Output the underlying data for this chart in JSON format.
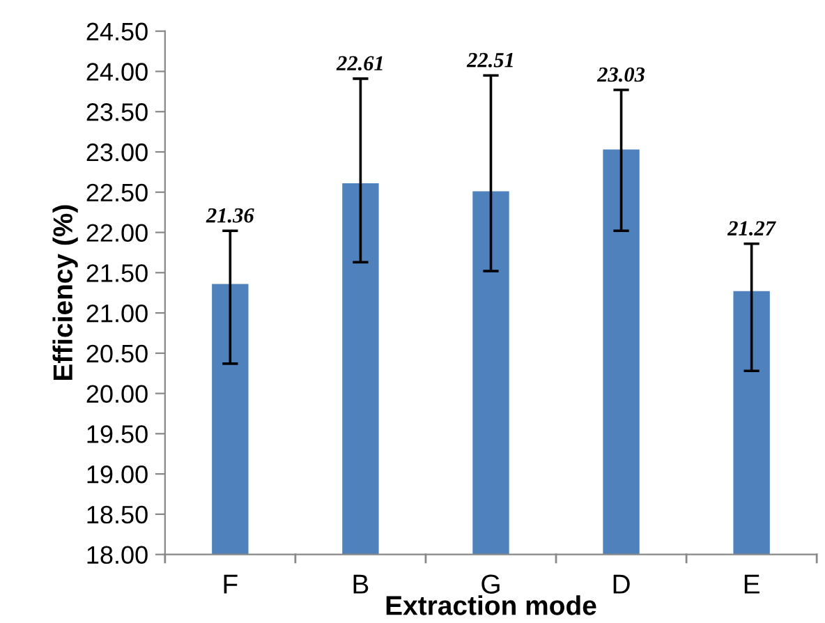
{
  "chart_data": {
    "type": "bar",
    "xlabel": "Extraction mode",
    "ylabel": "Efficiency (%)",
    "categories": [
      "F",
      "B",
      "G",
      "D",
      "E"
    ],
    "values": [
      21.36,
      22.61,
      22.51,
      23.03,
      21.27
    ],
    "errors": [
      [
        20.37,
        22.02
      ],
      [
        21.63,
        23.91
      ],
      [
        21.52,
        23.95
      ],
      [
        22.02,
        23.77
      ],
      [
        20.28,
        21.86
      ]
    ],
    "color": "#4f81bd",
    "grid": false,
    "legend": false,
    "annotations": [
      {
        "text": "21.36",
        "x": "F",
        "y": 22.02
      },
      {
        "text": "22.61",
        "x": "B",
        "y": 23.91
      },
      {
        "text": "22.51",
        "x": "G",
        "y": 23.95
      },
      {
        "text": "23.03",
        "x": "D",
        "y": 23.77
      },
      {
        "text": "21.27",
        "x": "E",
        "y": 21.86
      }
    ],
    "ylim": [
      18,
      24.5
    ],
    "yticks": [
      {
        "value": 18,
        "label": "18.00"
      },
      {
        "value": 18.5,
        "label": "18.50"
      },
      {
        "value": 19,
        "label": "19.00"
      },
      {
        "value": 19.5,
        "label": "19.50"
      },
      {
        "value": 20,
        "label": "20.00"
      },
      {
        "value": 20.5,
        "label": "20.50"
      },
      {
        "value": 21,
        "label": "21.00"
      },
      {
        "value": 21.5,
        "label": "21.50"
      },
      {
        "value": 22,
        "label": "22.00"
      },
      {
        "value": 22.5,
        "label": "22.50"
      },
      {
        "value": 23,
        "label": "23.00"
      },
      {
        "value": 23.5,
        "label": "23.50"
      },
      {
        "value": 24,
        "label": "24.00"
      },
      {
        "value": 24.5,
        "label": "24.50"
      }
    ]
  }
}
